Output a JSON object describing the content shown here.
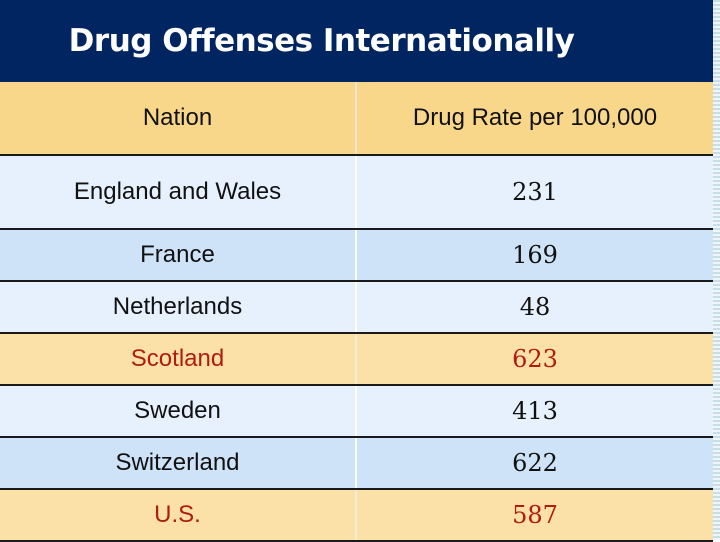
{
  "title": "Drug Offenses Internationally",
  "headers": {
    "nation": "Nation",
    "rate": "Drug Rate per 100,000"
  },
  "rows": [
    {
      "nation": "England and Wales",
      "rate": "231"
    },
    {
      "nation": "France",
      "rate": "169"
    },
    {
      "nation": "Netherlands",
      "rate": "48"
    },
    {
      "nation": "Scotland",
      "rate": "623"
    },
    {
      "nation": "Sweden",
      "rate": "413"
    },
    {
      "nation": "Switzerland",
      "rate": "622"
    },
    {
      "nation": "U.S.",
      "rate": "587"
    }
  ],
  "colors": {
    "title_bg": "#012561",
    "header_bg": "#f9d78a",
    "row_light": "#e6f1fd",
    "row_blue": "#cfe3f8",
    "row_gold": "#fbe1a7",
    "highlight_text": "#b01c0e"
  }
}
